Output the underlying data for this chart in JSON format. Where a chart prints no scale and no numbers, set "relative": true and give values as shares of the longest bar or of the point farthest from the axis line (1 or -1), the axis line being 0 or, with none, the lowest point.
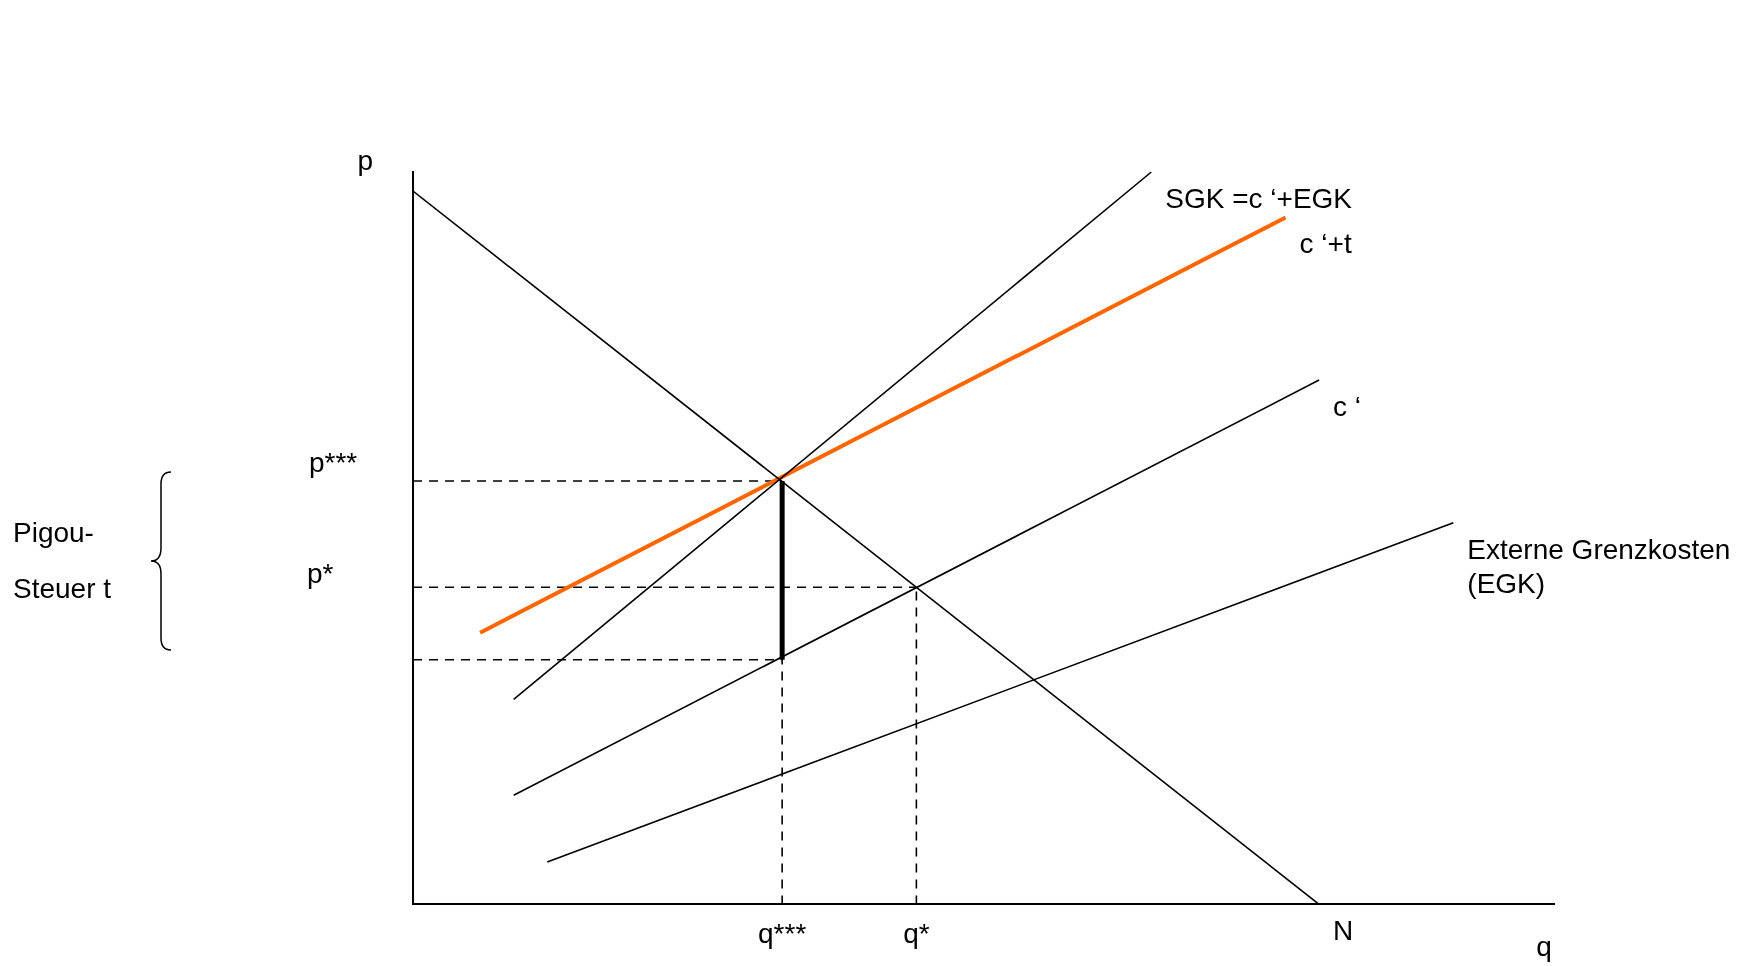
{
  "chart_data": {
    "type": "line",
    "relative": true,
    "xlabel": "q",
    "ylabel": "p",
    "legend": false,
    "grid": false,
    "marker": "none",
    "categories": [
      null,
      null,
      null,
      null,
      null,
      null,
      null,
      null,
      null,
      null,
      null,
      "q***",
      null,
      null,
      null,
      "q*",
      null,
      null,
      null,
      null,
      null,
      null,
      null,
      null,
      null,
      null,
      null,
      null,
      null,
      null,
      null,
      null,
      null,
      null,
      null
    ],
    "annotations": [
      "p***",
      "p*",
      "Pigou-Steuer t"
    ],
    "series": [
      {
        "name": "N",
        "color": "#000000",
        "values": [
          0.974,
          null,
          null,
          null,
          null,
          null,
          null,
          null,
          null,
          null,
          null,
          null,
          null,
          null,
          null,
          null,
          null,
          null,
          null,
          null,
          null,
          null,
          null,
          null,
          null,
          null,
          null,
          0,
          null,
          null,
          null,
          null,
          null,
          null,
          null
        ]
      },
      {
        "name": "SGK =c ‘+EGK",
        "color": "#000000",
        "values": [
          null,
          null,
          null,
          0.28,
          null,
          null,
          null,
          null,
          null,
          null,
          null,
          null,
          null,
          null,
          null,
          null,
          null,
          null,
          null,
          null,
          null,
          null,
          1,
          null,
          null,
          null,
          null,
          null,
          null,
          null,
          null,
          null,
          null,
          null,
          null
        ]
      },
      {
        "name": "c ‘+t",
        "color": "#ff6600",
        "values": [
          null,
          null,
          0.371,
          null,
          null,
          null,
          null,
          null,
          null,
          null,
          null,
          null,
          null,
          null,
          null,
          null,
          null,
          null,
          null,
          null,
          null,
          null,
          null,
          null,
          null,
          null,
          0.938,
          null,
          null,
          null,
          null,
          null,
          null,
          null,
          null
        ]
      },
      {
        "name": "c ‘",
        "color": "#000000",
        "values": [
          null,
          null,
          null,
          0.149,
          null,
          null,
          null,
          null,
          null,
          null,
          null,
          null,
          null,
          null,
          null,
          null,
          null,
          null,
          null,
          null,
          null,
          null,
          null,
          null,
          null,
          null,
          null,
          0.716,
          null,
          null,
          null,
          null,
          null,
          null,
          null
        ]
      },
      {
        "name": "Externe Grenzkosten (EGK)",
        "color": "#000000",
        "values": [
          null,
          null,
          null,
          null,
          0.058,
          null,
          null,
          null,
          null,
          null,
          null,
          null,
          null,
          null,
          null,
          null,
          null,
          null,
          null,
          null,
          null,
          null,
          null,
          null,
          null,
          null,
          null,
          null,
          null,
          null,
          null,
          0.521,
          null,
          null,
          null
        ]
      },
      {
        "color": "#000000",
        "x": [
          "q***",
          "q***"
        ],
        "values": [
          0.334,
          0.578
        ]
      },
      {
        "color": "#000000",
        "line_style": "dashed",
        "values": [
          0.578,
          null,
          null,
          null,
          null,
          null,
          null,
          null,
          null,
          null,
          null,
          0.578,
          null,
          null,
          null,
          null,
          null,
          null,
          null,
          null,
          null,
          null,
          null,
          null,
          null,
          null,
          null,
          null,
          null,
          null,
          null,
          null,
          null,
          null,
          null
        ]
      },
      {
        "color": "#000000",
        "line_style": "dashed",
        "values": [
          0.433,
          null,
          null,
          null,
          null,
          null,
          null,
          null,
          null,
          null,
          null,
          null,
          null,
          null,
          null,
          0.433,
          null,
          null,
          null,
          null,
          null,
          null,
          null,
          null,
          null,
          null,
          null,
          null,
          null,
          null,
          null,
          null,
          null,
          null,
          null
        ]
      },
      {
        "color": "#000000",
        "line_style": "dashed",
        "values": [
          0.334,
          null,
          null,
          null,
          null,
          null,
          null,
          null,
          null,
          null,
          null,
          0.334,
          null,
          null,
          null,
          null,
          null,
          null,
          null,
          null,
          null,
          null,
          null,
          null,
          null,
          null,
          null,
          null,
          null,
          null,
          null,
          null,
          null,
          null,
          null
        ]
      },
      {
        "color": "#000000",
        "line_style": "dashed",
        "x": [
          "q***",
          "q***"
        ],
        "values": [
          0,
          0.578
        ]
      },
      {
        "color": "#000000",
        "line_style": "dashed",
        "x": [
          "q*",
          "q*"
        ],
        "values": [
          0,
          0.433
        ]
      }
    ]
  }
}
